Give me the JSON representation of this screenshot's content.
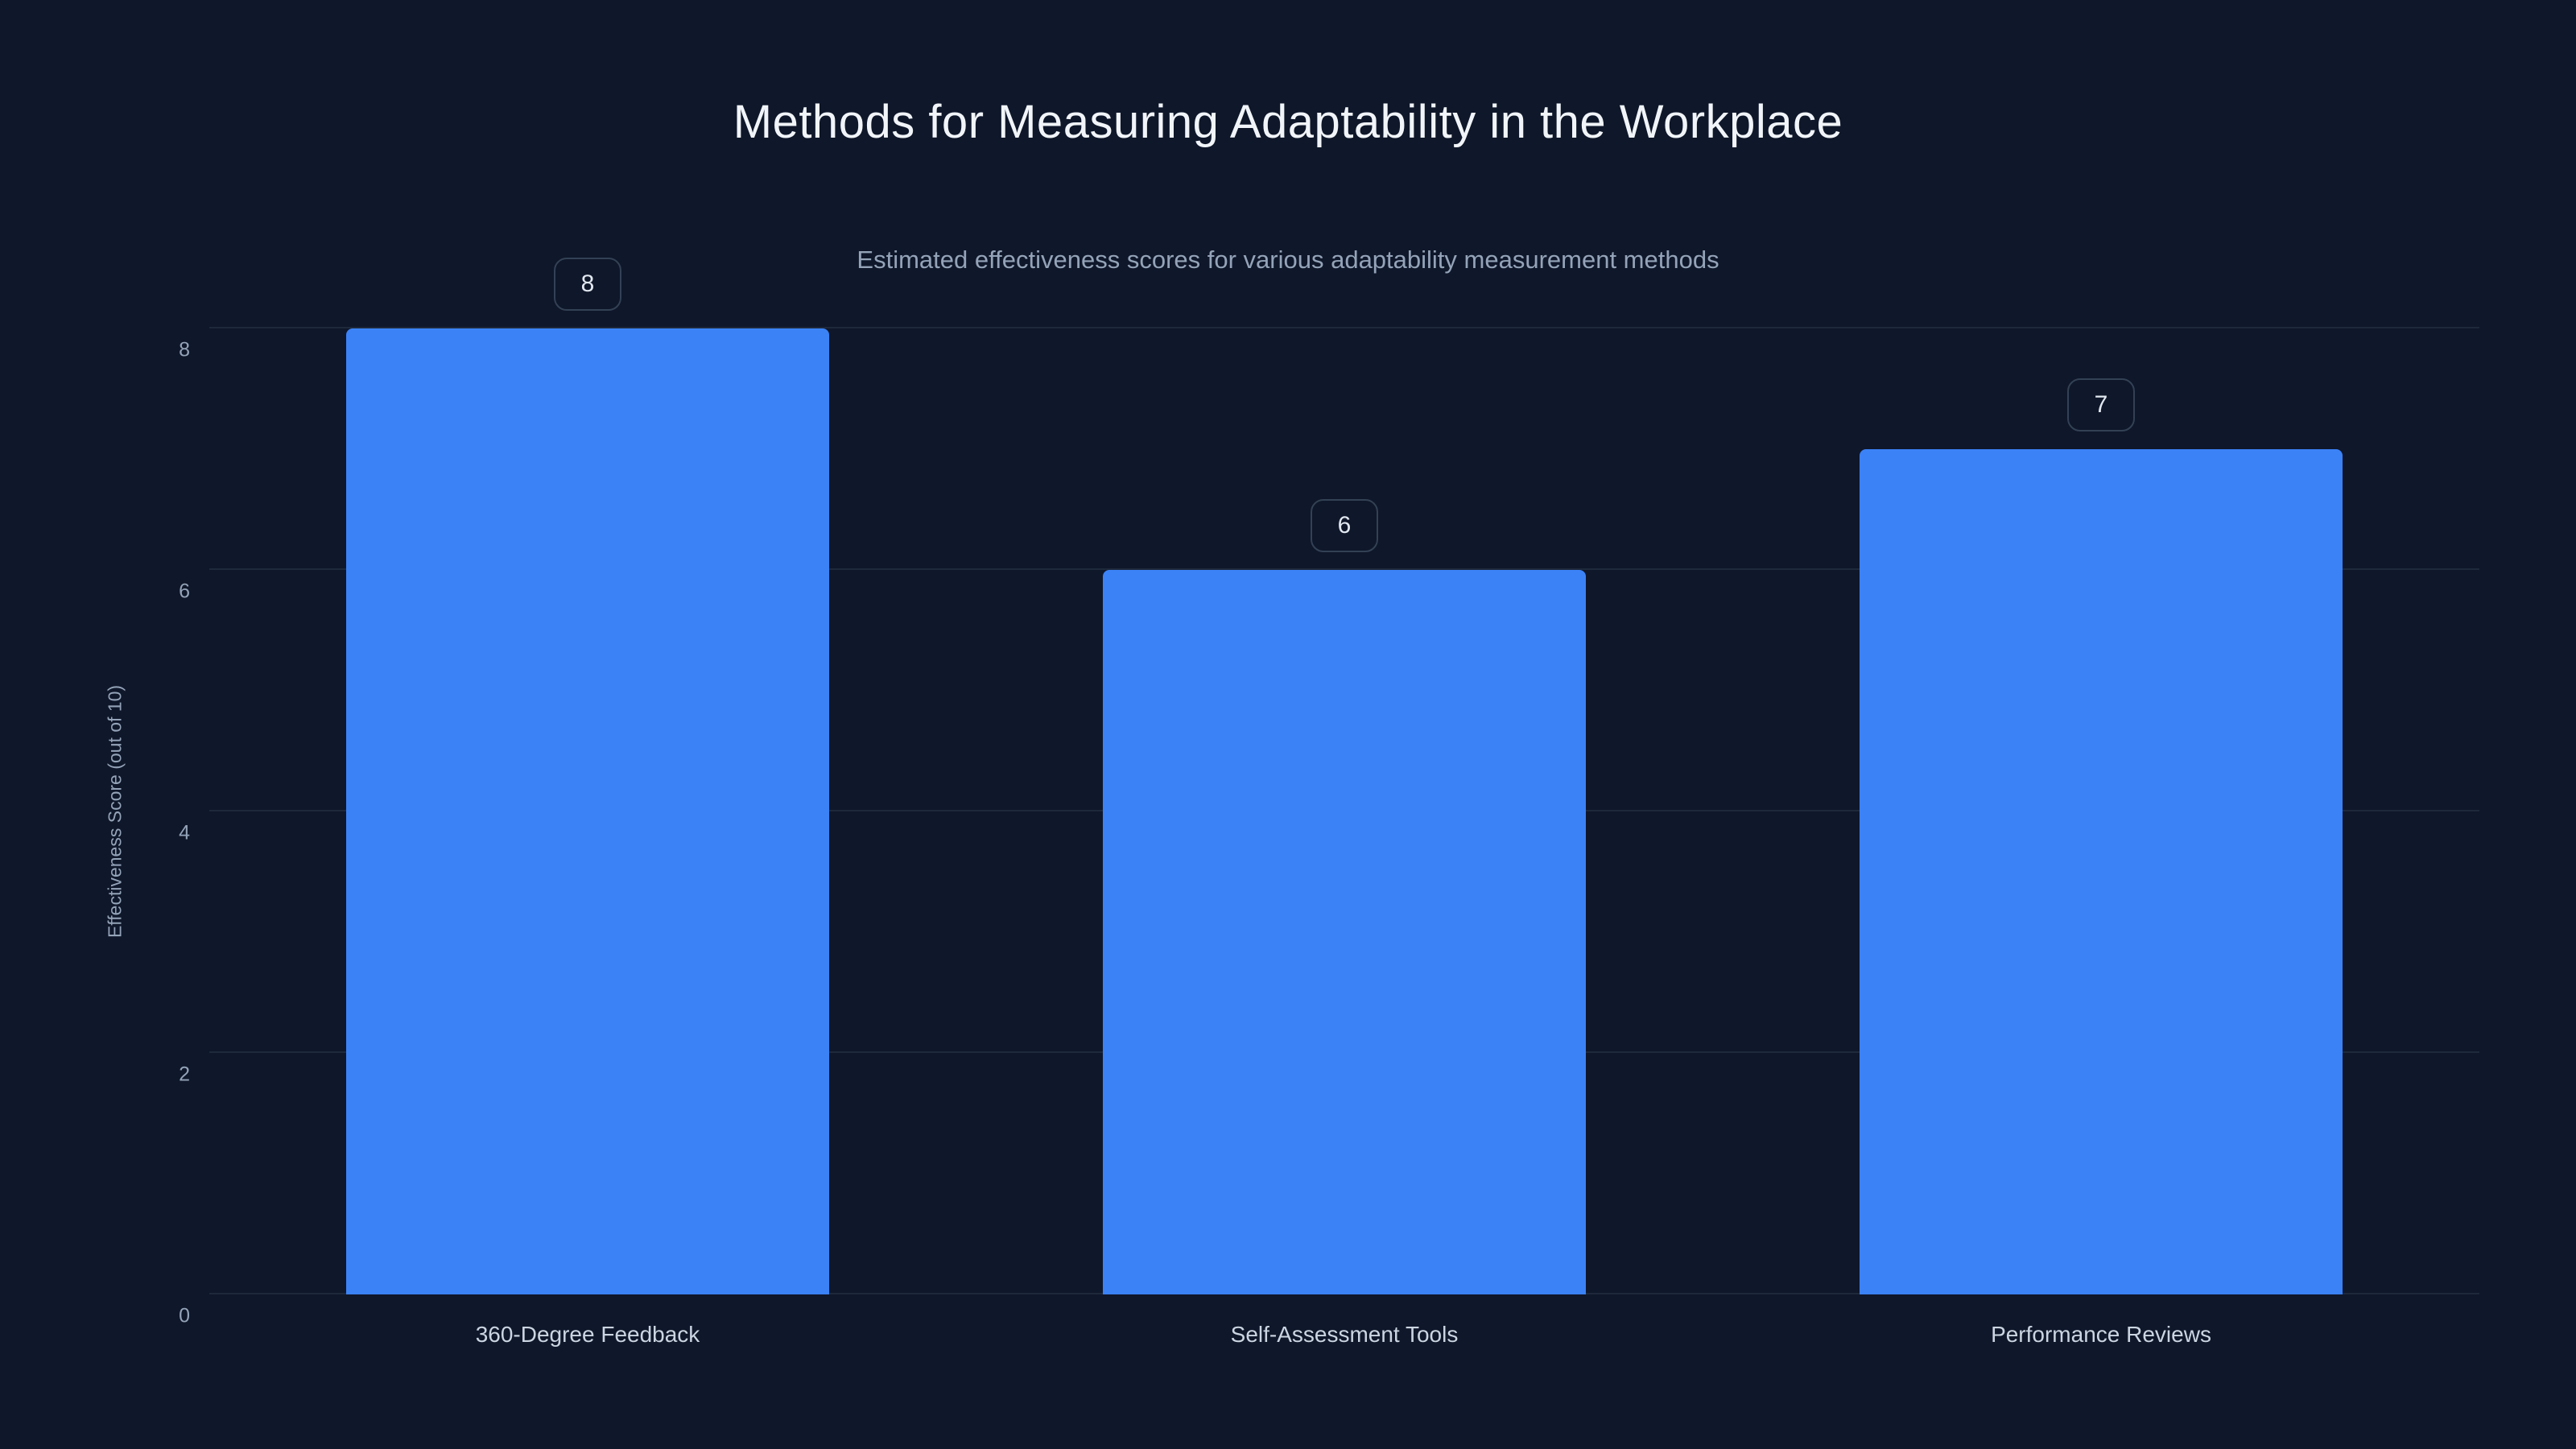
{
  "page": {
    "background_color": "#0f172a",
    "bar_color": "#3b82f6",
    "gridline_color": "#1e293b"
  },
  "chart_data": {
    "type": "bar",
    "title": "Methods for Measuring Adaptability in the Workplace",
    "subtitle": "Estimated effectiveness scores for various adaptability measurement methods",
    "categories": [
      "360-Degree Feedback",
      "Self-Assessment Tools",
      "Performance Reviews"
    ],
    "values": [
      8,
      6,
      7
    ],
    "value_labels": [
      "8",
      "6",
      "7"
    ],
    "xlabel": "",
    "ylabel": "Effectiveness Score (out of 10)",
    "yticks": [
      0,
      2,
      4,
      6,
      8
    ],
    "ylim": [
      0,
      8
    ],
    "grid": "horizontal",
    "legend": "none"
  }
}
